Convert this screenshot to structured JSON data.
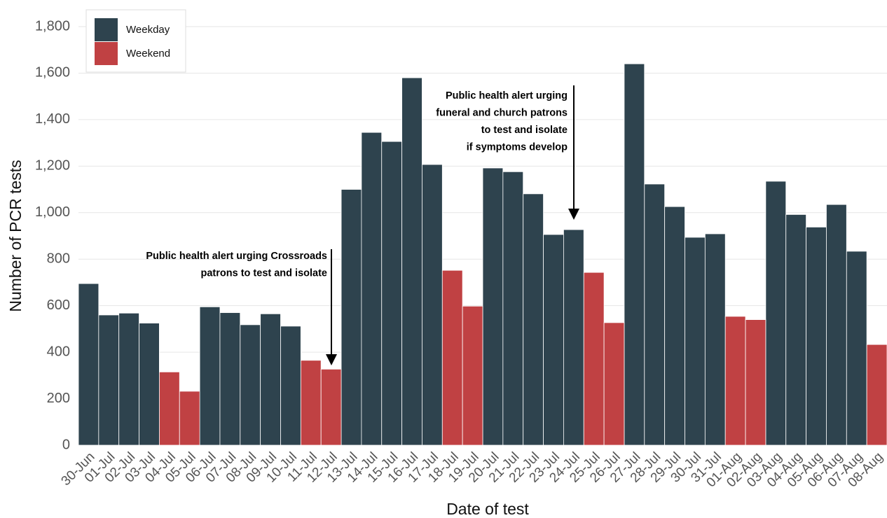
{
  "chart_data": {
    "type": "bar",
    "x_label": "Date of test",
    "y_label": "Number of PCR tests",
    "categories": [
      "30-Jun",
      "01-Jul",
      "02-Jul",
      "03-Jul",
      "04-Jul",
      "05-Jul",
      "06-Jul",
      "07-Jul",
      "08-Jul",
      "09-Jul",
      "10-Jul",
      "11-Jul",
      "12-Jul",
      "13-Jul",
      "14-Jul",
      "15-Jul",
      "16-Jul",
      "17-Jul",
      "18-Jul",
      "19-Jul",
      "20-Jul",
      "21-Jul",
      "22-Jul",
      "23-Jul",
      "24-Jul",
      "25-Jul",
      "26-Jul",
      "27-Jul",
      "28-Jul",
      "29-Jul",
      "30-Jul",
      "31-Jul",
      "01-Aug",
      "02-Aug",
      "03-Aug",
      "04-Aug",
      "05-Aug",
      "06-Aug",
      "07-Aug",
      "08-Aug"
    ],
    "series": [
      {
        "name": "Weekday",
        "color": "#2e434e",
        "values": [
          695,
          560,
          568,
          525,
          null,
          null,
          595,
          570,
          518,
          565,
          512,
          null,
          null,
          1100,
          1345,
          1306,
          1580,
          1207,
          null,
          null,
          1192,
          1176,
          1081,
          906,
          927,
          null,
          null,
          1640,
          1123,
          1026,
          894,
          909,
          null,
          null,
          1135,
          992,
          938,
          1035,
          834,
          null
        ]
      },
      {
        "name": "Weekend",
        "color": "#c04143",
        "values": [
          null,
          null,
          null,
          null,
          315,
          232,
          null,
          null,
          null,
          null,
          null,
          365,
          327,
          null,
          null,
          null,
          null,
          null,
          752,
          598,
          null,
          null,
          null,
          null,
          null,
          743,
          527,
          null,
          null,
          null,
          null,
          null,
          554,
          540,
          null,
          null,
          null,
          null,
          null,
          433
        ]
      }
    ],
    "ylim": [
      0,
      1800
    ],
    "yticks": [
      0,
      200,
      400,
      600,
      800,
      {
        "value": 1000,
        "label": "1,000"
      },
      {
        "value": 1200,
        "label": "1,200"
      },
      {
        "value": 1400,
        "label": "1,400"
      },
      {
        "value": 1600,
        "label": "1,600"
      },
      {
        "value": 1800,
        "label": "1,800"
      }
    ],
    "grid": true,
    "legend": "top-left",
    "annotations": [
      {
        "lines": [
          "Public health alert urging Crossroads",
          "patrons to test and isolate"
        ]
      },
      {
        "lines": [
          "Public health alert urging",
          "funeral and church patrons",
          "to test and isolate",
          "if symptoms develop"
        ]
      }
    ]
  }
}
